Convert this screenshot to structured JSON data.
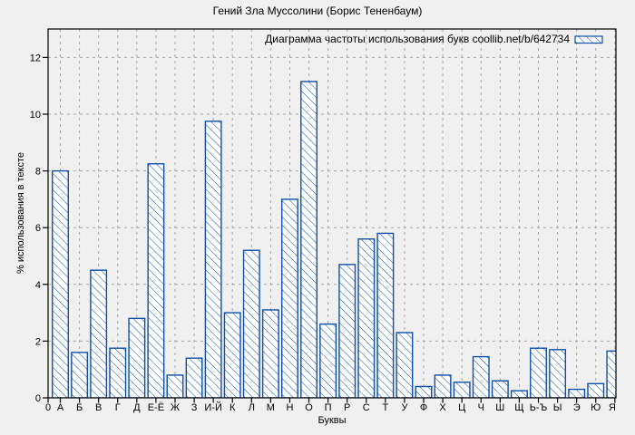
{
  "page": {
    "background": "#f0f0f0"
  },
  "chart_data": {
    "type": "bar",
    "title": "Гений Зла Муссолини (Борис Тененбаум)",
    "legend": "Диаграмма частоты использования букв coollib.net/b/642734",
    "legend_position": "top-right-inside",
    "xlabel": "Буквы",
    "ylabel": "% использования в тексте",
    "x_origin_label": "0",
    "categories": [
      "А",
      "Б",
      "В",
      "Г",
      "Д",
      "Е-Ё",
      "Ж",
      "З",
      "И-Й",
      "К",
      "Л",
      "М",
      "Н",
      "О",
      "П",
      "Р",
      "С",
      "Т",
      "У",
      "Ф",
      "Х",
      "Ц",
      "Ч",
      "Ш",
      "Щ",
      "Ь-Ъ",
      "Ы",
      "Э",
      "Ю",
      "Я"
    ],
    "values": [
      8.0,
      1.6,
      4.5,
      1.75,
      2.8,
      8.25,
      0.8,
      1.4,
      9.75,
      3.0,
      5.2,
      3.1,
      7.0,
      11.15,
      2.6,
      4.7,
      5.6,
      5.8,
      2.3,
      0.4,
      0.8,
      0.55,
      1.45,
      0.6,
      0.25,
      1.75,
      1.7,
      0.3,
      0.5,
      1.65
    ],
    "yticks": [
      0,
      2,
      4,
      6,
      8,
      10,
      12
    ],
    "ylim": [
      0,
      13
    ],
    "grid": true,
    "bar_style": "hatched",
    "colors": {
      "bar": "#0e4fa8",
      "bar_fill": "#ffffff",
      "grid": "#a8a8a8",
      "axis": "#000000",
      "text": "#000000",
      "background": "#f0f0f0"
    }
  }
}
